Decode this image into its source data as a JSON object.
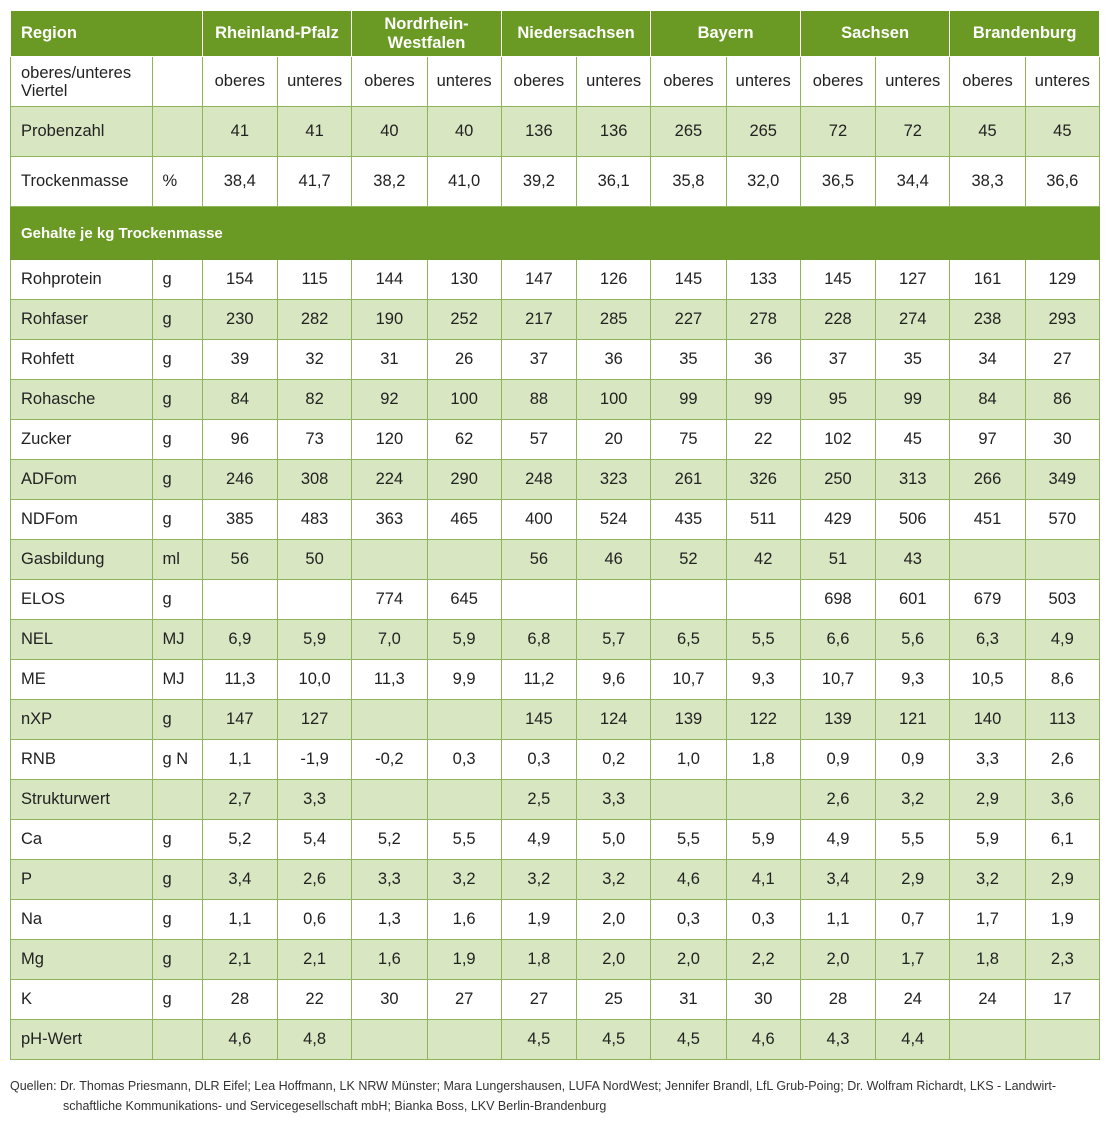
{
  "header": {
    "region_label": "Region",
    "regions": [
      "Rheinland-Pfalz",
      "Nordrhein-Westfalen",
      "Niedersachsen",
      "Bayern",
      "Sachsen",
      "Brandenburg"
    ]
  },
  "quarter_row": {
    "label": "oberes/unteres Viertel",
    "unit": "",
    "values": [
      "oberes",
      "unteres",
      "oberes",
      "unteres",
      "oberes",
      "unteres",
      "oberes",
      "unteres",
      "oberes",
      "unteres",
      "oberes",
      "unteres"
    ]
  },
  "top_rows": [
    {
      "label": "Probenzahl",
      "unit": "",
      "values": [
        "41",
        "41",
        "40",
        "40",
        "136",
        "136",
        "265",
        "265",
        "72",
        "72",
        "45",
        "45"
      ]
    },
    {
      "label": "Trockenmasse",
      "unit": "%",
      "values": [
        "38,4",
        "41,7",
        "38,2",
        "41,0",
        "39,2",
        "36,1",
        "35,8",
        "32,0",
        "36,5",
        "34,4",
        "38,3",
        "36,6"
      ]
    }
  ],
  "section_title": "Gehalte je kg Trockenmasse",
  "rows": [
    {
      "label": "Rohprotein",
      "unit": "g",
      "values": [
        "154",
        "115",
        "144",
        "130",
        "147",
        "126",
        "145",
        "133",
        "145",
        "127",
        "161",
        "129"
      ]
    },
    {
      "label": "Rohfaser",
      "unit": "g",
      "values": [
        "230",
        "282",
        "190",
        "252",
        "217",
        "285",
        "227",
        "278",
        "228",
        "274",
        "238",
        "293"
      ]
    },
    {
      "label": "Rohfett",
      "unit": "g",
      "values": [
        "39",
        "32",
        "31",
        "26",
        "37",
        "36",
        "35",
        "36",
        "37",
        "35",
        "34",
        "27"
      ]
    },
    {
      "label": "Rohasche",
      "unit": "g",
      "values": [
        "84",
        "82",
        "92",
        "100",
        "88",
        "100",
        "99",
        "99",
        "95",
        "99",
        "84",
        "86"
      ]
    },
    {
      "label": " Zucker",
      "unit": "g",
      "values": [
        "96",
        "73",
        "120",
        "62",
        "57",
        "20",
        "75",
        "22",
        "102",
        "45",
        "97",
        "30"
      ]
    },
    {
      "label": "ADFom",
      "unit": "g",
      "values": [
        "246",
        "308",
        "224",
        "290",
        "248",
        "323",
        "261",
        "326",
        "250",
        "313",
        "266",
        "349"
      ]
    },
    {
      "label": "NDFom",
      "unit": "g",
      "values": [
        "385",
        "483",
        "363",
        "465",
        "400",
        "524",
        "435",
        "511",
        "429",
        "506",
        "451",
        "570"
      ]
    },
    {
      "label": "Gasbildung",
      "unit": "ml",
      "values": [
        "56",
        "50",
        "",
        "",
        "56",
        "46",
        "52",
        "42",
        "51",
        "43",
        "",
        ""
      ]
    },
    {
      "label": "ELOS",
      "unit": "g",
      "values": [
        "",
        "",
        "774",
        "645",
        "",
        "",
        "",
        "",
        "698",
        "601",
        "679",
        "503"
      ]
    },
    {
      "label": "NEL",
      "unit": "MJ",
      "values": [
        "6,9",
        "5,9",
        "7,0",
        "5,9",
        "6,8",
        "5,7",
        "6,5",
        "5,5",
        "6,6",
        "5,6",
        "6,3",
        "4,9"
      ]
    },
    {
      "label": "ME",
      "unit": "MJ",
      "values": [
        "11,3",
        "10,0",
        "11,3",
        "9,9",
        "11,2",
        "9,6",
        "10,7",
        "9,3",
        "10,7",
        "9,3",
        "10,5",
        "8,6"
      ]
    },
    {
      "label": "nXP",
      "unit": "g",
      "values": [
        "147",
        "127",
        "",
        "",
        "145",
        "124",
        "139",
        "122",
        "139",
        "121",
        "140",
        "113"
      ]
    },
    {
      "label": "RNB",
      "unit": "g N",
      "values": [
        "1,1",
        "-1,9",
        "-0,2",
        "0,3",
        "0,3",
        "0,2",
        "1,0",
        "1,8",
        "0,9",
        "0,9",
        "3,3",
        "2,6"
      ]
    },
    {
      "label": "Strukturwert",
      "unit": "",
      "values": [
        "2,7",
        "3,3",
        "",
        "",
        "2,5",
        "3,3",
        "",
        "",
        "2,6",
        "3,2",
        "2,9",
        "3,6"
      ]
    },
    {
      "label": "Ca",
      "unit": "g",
      "values": [
        "5,2",
        "5,4",
        "5,2",
        "5,5",
        "4,9",
        "5,0",
        "5,5",
        "5,9",
        "4,9",
        "5,5",
        "5,9",
        "6,1"
      ]
    },
    {
      "label": "P",
      "unit": "g",
      "values": [
        "3,4",
        "2,6",
        "3,3",
        "3,2",
        "3,2",
        "3,2",
        "4,6",
        "4,1",
        "3,4",
        "2,9",
        "3,2",
        "2,9"
      ]
    },
    {
      "label": "Na",
      "unit": "g",
      "values": [
        "1,1",
        "0,6",
        "1,3",
        "1,6",
        "1,9",
        "2,0",
        "0,3",
        "0,3",
        "1,1",
        "0,7",
        "1,7",
        "1,9"
      ]
    },
    {
      "label": "Mg",
      "unit": "g",
      "values": [
        "2,1",
        "2,1",
        "1,6",
        "1,9",
        "1,8",
        "2,0",
        "2,0",
        "2,2",
        "2,0",
        "1,7",
        "1,8",
        "2,3"
      ]
    },
    {
      "label": "K",
      "unit": "g",
      "values": [
        "28",
        "22",
        "30",
        "27",
        "27",
        "25",
        "31",
        "30",
        "28",
        "24",
        "24",
        "17"
      ]
    },
    {
      "label": "pH-Wert",
      "unit": "",
      "values": [
        "4,6",
        "4,8",
        "",
        "",
        "4,5",
        "4,5",
        "4,5",
        "4,6",
        "4,3",
        "4,4",
        "",
        ""
      ]
    }
  ],
  "source": {
    "line1": "Quellen: Dr. Thomas Priesmann, DLR Eifel; Lea Hoffmann, LK NRW Münster; Mara Lungershausen, LUFA NordWest; Jennifer Brandl, LfL Grub-Poing; Dr. Wolfram Richardt, LKS - Landwirt-",
    "line2": "schaftliche Kommunikations- und Servicegesellschaft mbH; Bianka Boss, LKV Berlin-Brandenburg"
  },
  "colors": {
    "header_green": "#6a9a24",
    "row_shade": "#d8e6c2",
    "border": "#8fb55a"
  }
}
